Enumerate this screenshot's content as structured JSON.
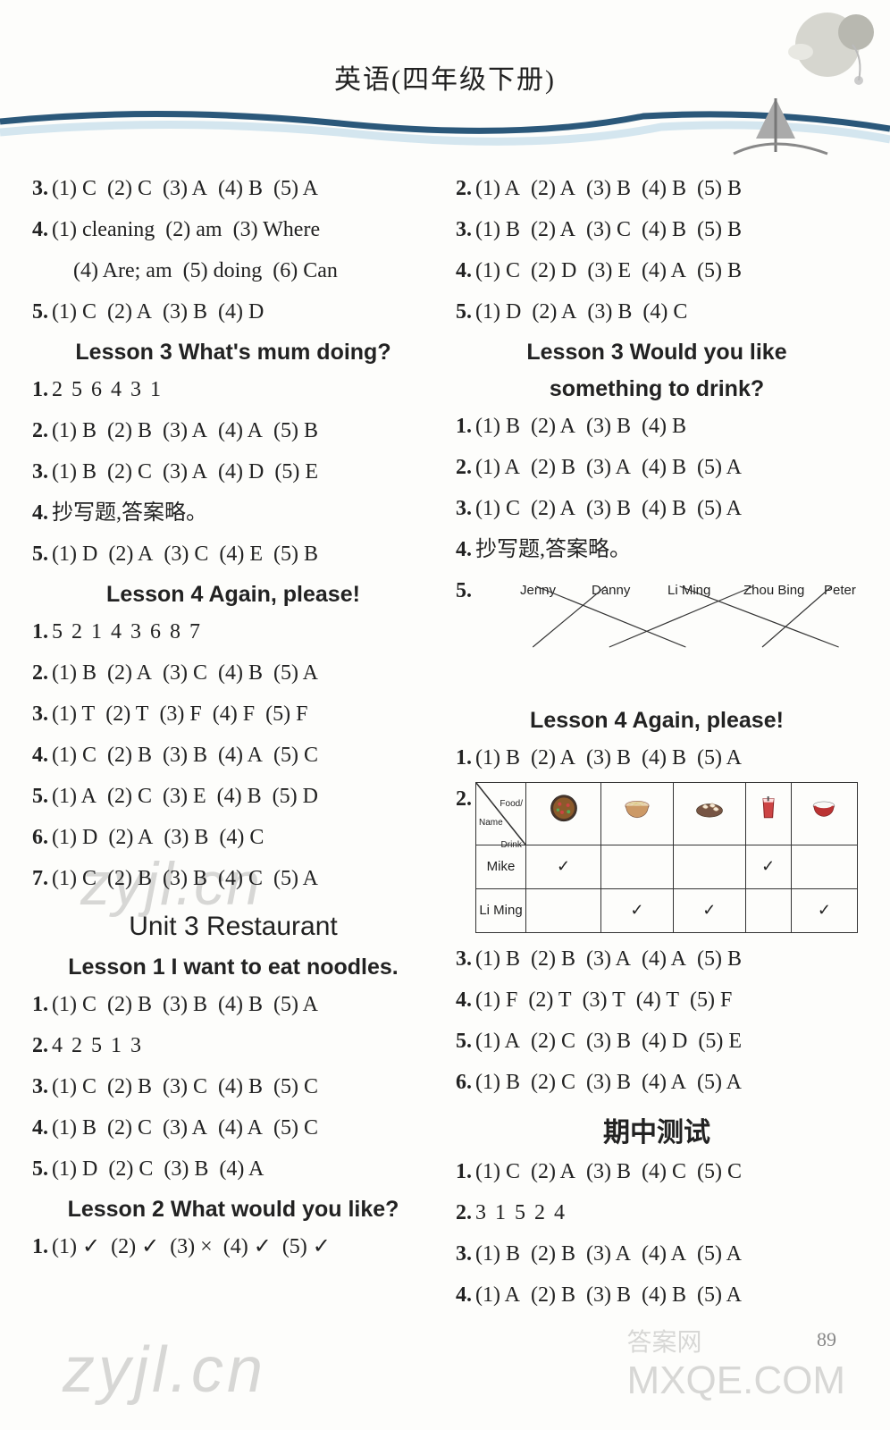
{
  "page": {
    "title": "英语(四年级下册)",
    "number": "89"
  },
  "watermark": {
    "bl": "zyjl.cn",
    "br": "MXQE.COM",
    "c": "zyjl.cn",
    "brcap": "答案网"
  },
  "colors": {
    "wave1": "#2b587a",
    "wave2": "#b5d6e6",
    "text": "#222"
  },
  "left": [
    {
      "type": "ans",
      "n": "3.",
      "subs": [
        "(1) C",
        "(2) C",
        "(3) A",
        "(4) B",
        "(5) A"
      ]
    },
    {
      "type": "ans",
      "n": "4.",
      "subs": [
        "(1) cleaning",
        "(2) am",
        "(3) Where"
      ]
    },
    {
      "type": "ansi",
      "subs": [
        "(4) Are; am",
        "(5) doing",
        "(6) Can"
      ]
    },
    {
      "type": "ans",
      "n": "5.",
      "subs": [
        "(1) C",
        "(2) A",
        "(3) B",
        "(4) D"
      ]
    },
    {
      "type": "h",
      "text": "Lesson 3  What's mum doing?"
    },
    {
      "type": "seq",
      "n": "1.",
      "seq": "2  5  6  4  3  1"
    },
    {
      "type": "ans",
      "n": "2.",
      "subs": [
        "(1) B",
        "(2) B",
        "(3) A",
        "(4) A",
        "(5) B"
      ]
    },
    {
      "type": "ans",
      "n": "3.",
      "subs": [
        "(1) B",
        "(2) C",
        "(3) A",
        "(4) D",
        "(5) E"
      ]
    },
    {
      "type": "txt",
      "n": "4.",
      "text": "抄写题,答案略。"
    },
    {
      "type": "ans",
      "n": "5.",
      "subs": [
        "(1) D",
        "(2) A",
        "(3) C",
        "(4) E",
        "(5) B"
      ]
    },
    {
      "type": "h",
      "text": "Lesson 4  Again, please!"
    },
    {
      "type": "seq",
      "n": "1.",
      "seq": "5  2  1  4  3  6  8  7"
    },
    {
      "type": "ans",
      "n": "2.",
      "subs": [
        "(1) B",
        "(2) A",
        "(3) C",
        "(4) B",
        "(5) A"
      ]
    },
    {
      "type": "ans",
      "n": "3.",
      "subs": [
        "(1) T",
        "(2) T",
        "(3) F",
        "(4) F",
        "(5) F"
      ]
    },
    {
      "type": "ans",
      "n": "4.",
      "subs": [
        "(1) C",
        "(2) B",
        "(3) B",
        "(4) A",
        "(5) C"
      ]
    },
    {
      "type": "ans",
      "n": "5.",
      "subs": [
        "(1) A",
        "(2) C",
        "(3) E",
        "(4) B",
        "(5) D"
      ]
    },
    {
      "type": "ans",
      "n": "6.",
      "subs": [
        "(1) D",
        "(2) A",
        "(3) B",
        "(4) C"
      ]
    },
    {
      "type": "ans",
      "n": "7.",
      "subs": [
        "(1) C",
        "(2) B",
        "(3) B",
        "(4) C",
        "(5) A"
      ]
    },
    {
      "type": "unit",
      "text": "Unit 3  Restaurant"
    },
    {
      "type": "h",
      "text": "Lesson 1  I want to eat noodles."
    },
    {
      "type": "ans",
      "n": "1.",
      "subs": [
        "(1) C",
        "(2) B",
        "(3) B",
        "(4) B",
        "(5) A"
      ]
    },
    {
      "type": "seq",
      "n": "2.",
      "seq": "4  2  5  1  3"
    },
    {
      "type": "ans",
      "n": "3.",
      "subs": [
        "(1) C",
        "(2) B",
        "(3) C",
        "(4) B",
        "(5) C"
      ]
    },
    {
      "type": "ans",
      "n": "4.",
      "subs": [
        "(1) B",
        "(2) C",
        "(3) A",
        "(4) A",
        "(5) C"
      ]
    },
    {
      "type": "ans",
      "n": "5.",
      "subs": [
        "(1) D",
        "(2) C",
        "(3) B",
        "(4) A"
      ]
    },
    {
      "type": "h",
      "text": "Lesson 2  What would you like?"
    },
    {
      "type": "ans",
      "n": "1.",
      "subs": [
        "(1) ✓",
        "(2) ✓",
        "(3) ×",
        "(4) ✓",
        "(5) ✓"
      ]
    }
  ],
  "right": [
    {
      "type": "ans",
      "n": "2.",
      "subs": [
        "(1) A",
        "(2) A",
        "(3) B",
        "(4) B",
        "(5) B"
      ]
    },
    {
      "type": "ans",
      "n": "3.",
      "subs": [
        "(1) B",
        "(2) A",
        "(3) C",
        "(4) B",
        "(5) B"
      ]
    },
    {
      "type": "ans",
      "n": "4.",
      "subs": [
        "(1) C",
        "(2) D",
        "(3) E",
        "(4) A",
        "(5) B"
      ]
    },
    {
      "type": "ans",
      "n": "5.",
      "subs": [
        "(1) D",
        "(2) A",
        "(3) B",
        "(4) C"
      ]
    },
    {
      "type": "h",
      "text": "Lesson 3  Would you like"
    },
    {
      "type": "hc",
      "text": "something to drink?"
    },
    {
      "type": "ans",
      "n": "1.",
      "subs": [
        "(1) B",
        "(2) A",
        "(3) B",
        "(4) B"
      ]
    },
    {
      "type": "ans",
      "n": "2.",
      "subs": [
        "(1) A",
        "(2) B",
        "(3) A",
        "(4) B",
        "(5) A"
      ]
    },
    {
      "type": "ans",
      "n": "3.",
      "subs": [
        "(1) C",
        "(2) A",
        "(3) B",
        "(4) B",
        "(5) A"
      ]
    },
    {
      "type": "txt",
      "n": "4.",
      "text": "抄写题,答案略。"
    },
    {
      "type": "match",
      "n": "5.",
      "names": [
        "Jenny",
        "Danny",
        "Li Ming",
        "Zhou Bing",
        "Peter"
      ],
      "icons": [
        "milk",
        "bowl",
        "cupcake",
        "orange",
        "pizza"
      ],
      "iconX": [
        42,
        130,
        218,
        306,
        394
      ],
      "nameX": [
        50,
        130,
        215,
        300,
        390
      ],
      "edges": [
        [
          0,
          2
        ],
        [
          1,
          0
        ],
        [
          2,
          4
        ],
        [
          3,
          1
        ],
        [
          4,
          3
        ]
      ]
    },
    {
      "type": "h",
      "text": "Lesson 4  Again, please!"
    },
    {
      "type": "ans",
      "n": "1.",
      "subs": [
        "(1) B",
        "(2) A",
        "(3) B",
        "(4) B",
        "(5) A"
      ]
    },
    {
      "type": "foodtable",
      "n": "2.",
      "header": [
        "",
        "pizza",
        "noodles",
        "dumplings",
        "juice",
        "rice"
      ],
      "rows": [
        [
          "Mike",
          "✓",
          "",
          "",
          "✓",
          ""
        ],
        [
          "Li Ming",
          "",
          "✓",
          "✓",
          "",
          "✓"
        ]
      ]
    },
    {
      "type": "ans",
      "n": "3.",
      "subs": [
        "(1) B",
        "(2) B",
        "(3) A",
        "(4) A",
        "(5) B"
      ]
    },
    {
      "type": "ans",
      "n": "4.",
      "subs": [
        "(1) F",
        "(2) T",
        "(3) T",
        "(4) T",
        "(5) F"
      ]
    },
    {
      "type": "ans",
      "n": "5.",
      "subs": [
        "(1) A",
        "(2) C",
        "(3) B",
        "(4) D",
        "(5) E"
      ]
    },
    {
      "type": "ans",
      "n": "6.",
      "subs": [
        "(1) B",
        "(2) C",
        "(3) B",
        "(4) A",
        "(5) A"
      ]
    },
    {
      "type": "mid",
      "text": "期中测试"
    },
    {
      "type": "ans",
      "n": "1.",
      "subs": [
        "(1) C",
        "(2) A",
        "(3) B",
        "(4) C",
        "(5) C"
      ]
    },
    {
      "type": "seq",
      "n": "2.",
      "seq": "3  1  5  2  4"
    },
    {
      "type": "ans",
      "n": "3.",
      "subs": [
        "(1) B",
        "(2) B",
        "(3) A",
        "(4) A",
        "(5) A"
      ]
    },
    {
      "type": "ans",
      "n": "4.",
      "subs": [
        "(1) A",
        "(2) B",
        "(3) B",
        "(4) B",
        "(5) A"
      ]
    }
  ]
}
